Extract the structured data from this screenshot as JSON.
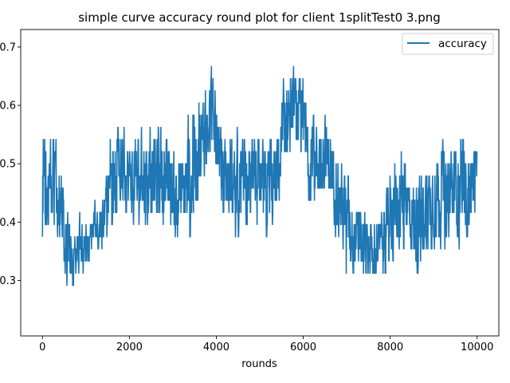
{
  "chart_data": {
    "type": "line",
    "title": "simple curve accuracy round plot for client 1splitTest0 3.png",
    "xlabel": "rounds",
    "ylabel": "",
    "xlim": [
      -500,
      10500
    ],
    "ylim": [
      0.205,
      0.73
    ],
    "xticks": [
      0,
      2000,
      4000,
      6000,
      8000,
      10000
    ],
    "yticks": [
      0.3,
      0.4,
      0.5,
      0.6,
      0.7
    ],
    "grid": false,
    "legend_position": "upper right",
    "series": [
      {
        "name": "accuracy",
        "color": "#1f77b4",
        "x": [
          0,
          200,
          400,
          600,
          800,
          1000,
          1200,
          1400,
          1600,
          1800,
          2000,
          2200,
          2400,
          2600,
          2800,
          3000,
          3200,
          3400,
          3600,
          3800,
          4000,
          4200,
          4400,
          4600,
          4800,
          5000,
          5200,
          5400,
          5600,
          5800,
          6000,
          6200,
          6400,
          6600,
          6800,
          7000,
          7200,
          7400,
          7600,
          7800,
          8000,
          8200,
          8400,
          8600,
          8800,
          9000,
          9200,
          9400,
          9600,
          9800,
          10000
        ],
        "center": [
          0.46,
          0.47,
          0.43,
          0.35,
          0.35,
          0.36,
          0.4,
          0.4,
          0.44,
          0.49,
          0.48,
          0.47,
          0.47,
          0.48,
          0.47,
          0.46,
          0.45,
          0.47,
          0.52,
          0.58,
          0.55,
          0.47,
          0.47,
          0.47,
          0.47,
          0.46,
          0.44,
          0.48,
          0.58,
          0.6,
          0.56,
          0.49,
          0.52,
          0.5,
          0.45,
          0.4,
          0.37,
          0.36,
          0.35,
          0.37,
          0.4,
          0.44,
          0.43,
          0.39,
          0.42,
          0.44,
          0.46,
          0.45,
          0.46,
          0.46,
          0.49
        ],
        "low": [
          0.29,
          0.37,
          0.33,
          0.23,
          0.29,
          0.29,
          0.35,
          0.33,
          0.33,
          0.37,
          0.38,
          0.35,
          0.36,
          0.37,
          0.34,
          0.33,
          0.35,
          0.29,
          0.42,
          0.44,
          0.46,
          0.37,
          0.36,
          0.33,
          0.35,
          0.29,
          0.33,
          0.37,
          0.47,
          0.5,
          0.44,
          0.37,
          0.4,
          0.39,
          0.34,
          0.25,
          0.29,
          0.27,
          0.27,
          0.28,
          0.25,
          0.33,
          0.33,
          0.28,
          0.29,
          0.32,
          0.33,
          0.35,
          0.33,
          0.35,
          0.41
        ],
        "high": [
          0.6,
          0.6,
          0.54,
          0.44,
          0.42,
          0.42,
          0.5,
          0.56,
          0.6,
          0.6,
          0.58,
          0.59,
          0.6,
          0.6,
          0.58,
          0.56,
          0.55,
          0.62,
          0.68,
          0.69,
          0.66,
          0.58,
          0.58,
          0.58,
          0.58,
          0.56,
          0.58,
          0.64,
          0.7,
          0.69,
          0.67,
          0.6,
          0.62,
          0.6,
          0.56,
          0.52,
          0.46,
          0.45,
          0.42,
          0.44,
          0.52,
          0.58,
          0.56,
          0.5,
          0.54,
          0.55,
          0.58,
          0.58,
          0.6,
          0.6,
          0.62
        ],
        "points": 10001,
        "summary": "noisy oscillating accuracy between about 0.23 and 0.69 over 10000 rounds"
      }
    ]
  }
}
